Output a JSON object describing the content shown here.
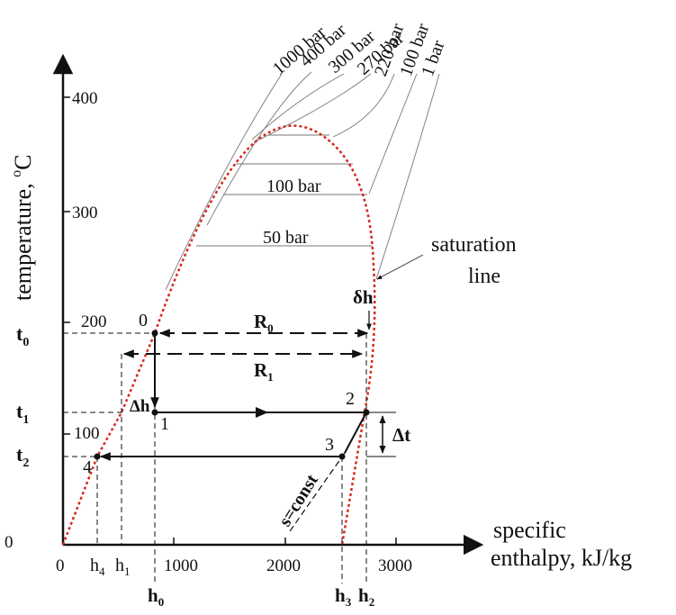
{
  "axes": {
    "y_label": "temperature, ",
    "y_unit_o": "o",
    "y_unit_c": "C",
    "x_label_line1": "specific",
    "x_label_line2": "enthalpy,   kJ/kg",
    "y_ticks": [
      "0",
      "100",
      "200",
      "300",
      "400"
    ],
    "x_ticks": [
      "0",
      "1000",
      "2000",
      "3000"
    ]
  },
  "isobar_labels": {
    "top": [
      "1000 bar",
      "400 bar",
      "300 bar",
      "270 bar",
      "220 bar",
      "100 bar",
      "1 bar"
    ],
    "inside": [
      "100 bar",
      "50 bar"
    ]
  },
  "saturation_label": [
    "saturation",
    "line"
  ],
  "points": [
    "0",
    "1",
    "2",
    "3",
    "4"
  ],
  "t_labels": {
    "t0": {
      "main": "t",
      "sub": "0"
    },
    "t1": {
      "main": "t",
      "sub": "1"
    },
    "t2": {
      "main": "t",
      "sub": "2"
    }
  },
  "h_labels": {
    "h0": {
      "main": "h",
      "sub": "0"
    },
    "h1": {
      "main": "h",
      "sub": "1"
    },
    "h2": {
      "main": "h",
      "sub": "2"
    },
    "h3": {
      "main": "h",
      "sub": "3"
    },
    "h4": {
      "main": "h",
      "sub": "4"
    }
  },
  "r_labels": {
    "R0": {
      "main": "R",
      "sub": "0"
    },
    "R1": {
      "main": "R",
      "sub": "1"
    }
  },
  "annotations": {
    "delta_h_small": "δh",
    "delta_h": "Δh",
    "delta_t": "Δt",
    "s_const": "s=const"
  },
  "colors": {
    "saturation_line": "#d42a1e",
    "lines": "#111111",
    "isobars": "#777777"
  }
}
